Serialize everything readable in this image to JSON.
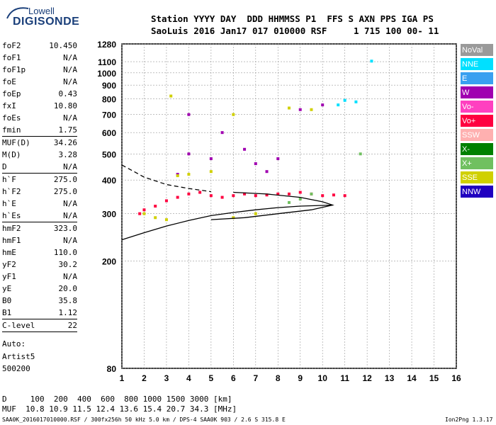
{
  "logo": {
    "line1": "Lowell",
    "line2": "DIGISONDE"
  },
  "header": {
    "line1": "Station YYYY DAY  DDD HHMMSS P1  FFS S AXN PPS IGA PS",
    "line2": "SaoLuis 2016 Jan17 017 010000 RSF     1 715 100 00- 11"
  },
  "params": [
    {
      "name": "foF2",
      "value": "10.450"
    },
    {
      "name": "foF1",
      "value": "N/A"
    },
    {
      "name": "foF1p",
      "value": "N/A"
    },
    {
      "name": "foE",
      "value": "N/A"
    },
    {
      "name": "foEp",
      "value": "0.43"
    },
    {
      "name": "fxI",
      "value": "10.80"
    },
    {
      "name": "foEs",
      "value": "N/A"
    },
    {
      "name": "fmin",
      "value": "1.75",
      "sep_after": true
    },
    {
      "name": "MUF(D)",
      "value": "34.26"
    },
    {
      "name": "M(D)",
      "value": "3.28"
    },
    {
      "name": "D",
      "value": "N/A",
      "sep_after": true
    },
    {
      "name": "h`F",
      "value": "275.0"
    },
    {
      "name": "h`F2",
      "value": "275.0"
    },
    {
      "name": "h`E",
      "value": "N/A"
    },
    {
      "name": "h`Es",
      "value": "N/A",
      "sep_after": true
    },
    {
      "name": "hmF2",
      "value": "323.0"
    },
    {
      "name": "hmF1",
      "value": "N/A"
    },
    {
      "name": "hmE",
      "value": "110.0"
    },
    {
      "name": "yF2",
      "value": "30.2"
    },
    {
      "name": "yF1",
      "value": "N/A"
    },
    {
      "name": "yE",
      "value": "20.0"
    },
    {
      "name": "B0",
      "value": "35.8"
    },
    {
      "name": "B1",
      "value": "1.12",
      "sep_after": true
    },
    {
      "name": "C-level",
      "value": "22",
      "sep_after": true
    }
  ],
  "autoscale": {
    "line1": "Auto:",
    "line2": "Artist5",
    "line3": "500200"
  },
  "footer": {
    "line1": "D     100  200  400  600  800 1000 1500 3000 [km]",
    "line2": "MUF  10.8 10.9 11.5 12.4 13.6 15.4 20.7 34.3 [MHz]",
    "line3": "SAA0K_2016017010000.RSF / 300fx256h 50 kHz 5.0 km / DPS-4 SAA0K 903 / 2.6 S 315.8 E",
    "line4": "Ion2Png 1.3.17"
  },
  "legend": [
    {
      "label": "NoVal",
      "color": "#9a9a9a"
    },
    {
      "label": "NNE",
      "color": "#00e0ff"
    },
    {
      "label": "E",
      "color": "#3aa0f0"
    },
    {
      "label": "W",
      "color": "#a000b0"
    },
    {
      "label": "Vo-",
      "color": "#ff40c0"
    },
    {
      "label": "Vo+",
      "color": "#ff0040"
    },
    {
      "label": "SSW",
      "color": "#ffb0b0"
    },
    {
      "label": "X-",
      "color": "#008000"
    },
    {
      "label": "X+",
      "color": "#70c060"
    },
    {
      "label": "SSE",
      "color": "#d0d000"
    },
    {
      "label": "NNW",
      "color": "#2000c0"
    }
  ],
  "chart_data": {
    "type": "scatter",
    "xlim": [
      1,
      16
    ],
    "ylim": [
      80,
      1280
    ],
    "y_scale": "log",
    "x_ticks": [
      "1",
      "2",
      "3",
      "4",
      "5",
      "6",
      "7",
      "8",
      "9",
      "10",
      "11",
      "12",
      "13",
      "14",
      "15",
      "16"
    ],
    "y_ticks": [
      "80",
      "200",
      "300",
      "400",
      "500",
      "600",
      "700",
      "800",
      "900",
      "1000",
      "1100",
      "1280"
    ],
    "grid": true,
    "series": [
      {
        "name": "Vo+",
        "color": "#ff0040",
        "points": [
          [
            1.8,
            300
          ],
          [
            2.0,
            310
          ],
          [
            2.5,
            320
          ],
          [
            3.0,
            335
          ],
          [
            3.5,
            345
          ],
          [
            4.0,
            355
          ],
          [
            4.5,
            360
          ],
          [
            5.0,
            350
          ],
          [
            5.5,
            345
          ],
          [
            6.0,
            350
          ],
          [
            6.5,
            355
          ],
          [
            7.0,
            350
          ],
          [
            7.5,
            352
          ],
          [
            8.0,
            355
          ],
          [
            8.5,
            355
          ],
          [
            9.0,
            360
          ],
          [
            9.5,
            355
          ],
          [
            10.0,
            350
          ],
          [
            10.5,
            352
          ],
          [
            11.0,
            350
          ]
        ]
      },
      {
        "name": "W",
        "color": "#a000b0",
        "points": [
          [
            3.5,
            420
          ],
          [
            4.0,
            500
          ],
          [
            4.0,
            700
          ],
          [
            5.0,
            480
          ],
          [
            5.5,
            600
          ],
          [
            6.5,
            520
          ],
          [
            7.0,
            460
          ],
          [
            7.5,
            430
          ],
          [
            8.0,
            480
          ],
          [
            9.0,
            730
          ],
          [
            10.0,
            760
          ]
        ]
      },
      {
        "name": "SSE",
        "color": "#d0d000",
        "points": [
          [
            2.0,
            300
          ],
          [
            2.5,
            290
          ],
          [
            3.0,
            285
          ],
          [
            3.5,
            415
          ],
          [
            4.0,
            420
          ],
          [
            5.0,
            430
          ],
          [
            6.0,
            290
          ],
          [
            7.0,
            300
          ],
          [
            8.5,
            740
          ],
          [
            9.5,
            730
          ],
          [
            3.2,
            820
          ],
          [
            6.0,
            700
          ]
        ]
      },
      {
        "name": "NNE",
        "color": "#00e0ff",
        "points": [
          [
            10.7,
            760
          ],
          [
            11.0,
            790
          ],
          [
            11.5,
            780
          ],
          [
            12.2,
            1105
          ]
        ]
      },
      {
        "name": "X+",
        "color": "#70c060",
        "points": [
          [
            8.5,
            330
          ],
          [
            9.0,
            340
          ],
          [
            9.5,
            355
          ],
          [
            11.7,
            500
          ]
        ]
      }
    ],
    "curves": [
      {
        "name": "o-trace",
        "style": "solid",
        "points": [
          [
            1.0,
            240
          ],
          [
            2.0,
            255
          ],
          [
            3.0,
            270
          ],
          [
            4.0,
            283
          ],
          [
            5.0,
            295
          ],
          [
            6.0,
            303
          ],
          [
            7.0,
            310
          ],
          [
            8.0,
            316
          ],
          [
            9.0,
            320
          ],
          [
            10.0,
            322
          ],
          [
            10.45,
            323
          ]
        ]
      },
      {
        "name": "x-trace",
        "style": "solid",
        "points": [
          [
            6.0,
            360
          ],
          [
            7.5,
            355
          ],
          [
            9.0,
            345
          ],
          [
            10.0,
            332
          ],
          [
            10.45,
            323
          ],
          [
            9.5,
            310
          ],
          [
            8.0,
            300
          ],
          [
            6.5,
            290
          ],
          [
            5.0,
            285
          ]
        ]
      },
      {
        "name": "profile",
        "style": "dashed",
        "points": [
          [
            1.0,
            455
          ],
          [
            2.0,
            410
          ],
          [
            3.0,
            385
          ],
          [
            4.0,
            372
          ],
          [
            5.0,
            362
          ]
        ]
      }
    ]
  }
}
